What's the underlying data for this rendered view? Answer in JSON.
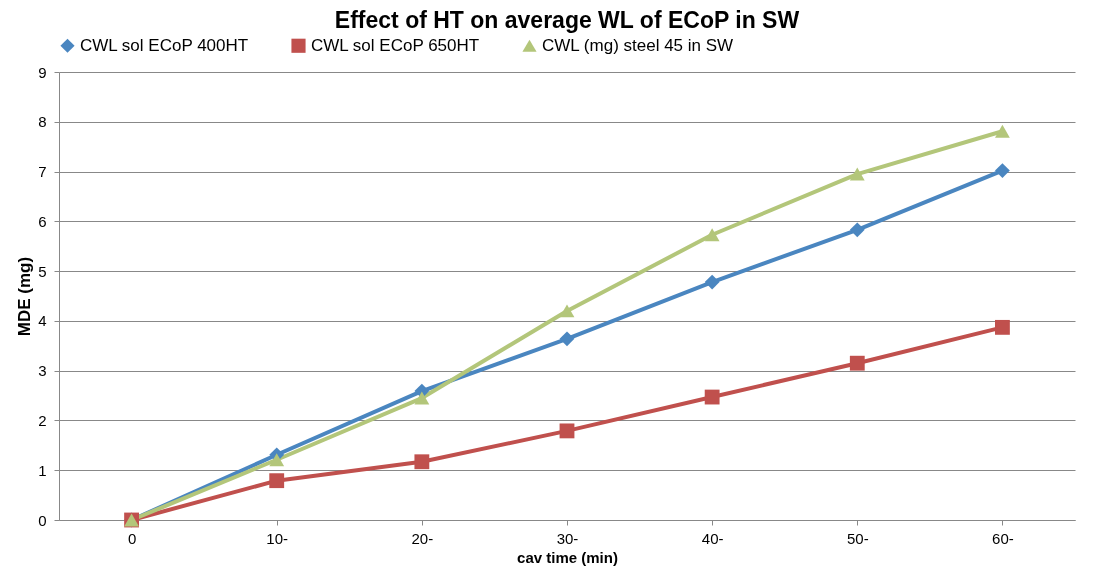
{
  "chart_data": {
    "type": "line",
    "title": "Effect of HT on average WL of  ECoP in SW",
    "xlabel": "cav time (min)",
    "ylabel": "MDE  (mg)",
    "categories": [
      "0",
      "10-",
      "20-",
      "30-",
      "40-",
      "50-",
      "60-"
    ],
    "series": [
      {
        "name": "CWL sol ECoP 400HT",
        "color": "#4a86c0",
        "marker": "diamond",
        "values": [
          0,
          1.31,
          2.59,
          3.64,
          4.78,
          5.83,
          7.02
        ]
      },
      {
        "name": "CWL sol ECoP 650HT",
        "color": "#c0504d",
        "marker": "square",
        "values": [
          0,
          0.79,
          1.17,
          1.79,
          2.47,
          3.15,
          3.87
        ]
      },
      {
        "name": "CWL (mg) steel 45 in SW",
        "color": "#b3c67a",
        "marker": "triangle",
        "values": [
          0,
          1.21,
          2.45,
          4.2,
          5.73,
          6.95,
          7.81
        ]
      }
    ],
    "ylim": [
      0,
      9
    ],
    "yticks": [
      0,
      1,
      2,
      3,
      4,
      5,
      6,
      7,
      8,
      9
    ],
    "grid": "y",
    "legend": "top"
  }
}
